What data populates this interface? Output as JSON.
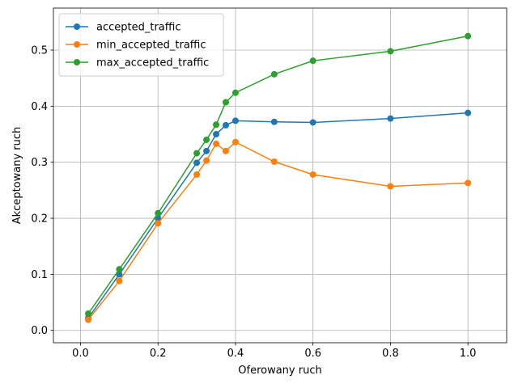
{
  "chart_data": {
    "type": "line",
    "title": "",
    "xlabel": "Oferowany ruch",
    "ylabel": "Akceptowany ruch",
    "xlim": [
      -0.07,
      1.1
    ],
    "ylim": [
      -0.022,
      0.575
    ],
    "xticks": [
      0.0,
      0.2,
      0.4,
      0.6,
      0.8,
      1.0
    ],
    "xtick_labels": [
      "0.0",
      "0.2",
      "0.4",
      "0.6",
      "0.8",
      "1.0"
    ],
    "yticks": [
      0.0,
      0.1,
      0.2,
      0.3,
      0.4,
      0.5
    ],
    "ytick_labels": [
      "0.0",
      "0.1",
      "0.2",
      "0.3",
      "0.4",
      "0.5"
    ],
    "grid": true,
    "legend_position": "top-left",
    "x": [
      0.02,
      0.1,
      0.2,
      0.3,
      0.325,
      0.35,
      0.375,
      0.4,
      0.5,
      0.6,
      0.8,
      1.0
    ],
    "series": [
      {
        "name": "accepted_traffic",
        "color": "#1f77b4",
        "values": [
          0.022,
          0.1,
          0.2,
          0.299,
          0.32,
          0.35,
          0.366,
          0.374,
          0.372,
          0.371,
          0.378,
          0.388
        ]
      },
      {
        "name": "min_accepted_traffic",
        "color": "#ff7f0e",
        "values": [
          0.019,
          0.088,
          0.191,
          0.278,
          0.303,
          0.333,
          0.32,
          0.336,
          0.301,
          0.278,
          0.257,
          0.263
        ]
      },
      {
        "name": "max_accepted_traffic",
        "color": "#2ca02c",
        "values": [
          0.03,
          0.109,
          0.209,
          0.316,
          0.34,
          0.367,
          0.407,
          0.424,
          0.457,
          0.481,
          0.498,
          0.525
        ]
      }
    ]
  }
}
